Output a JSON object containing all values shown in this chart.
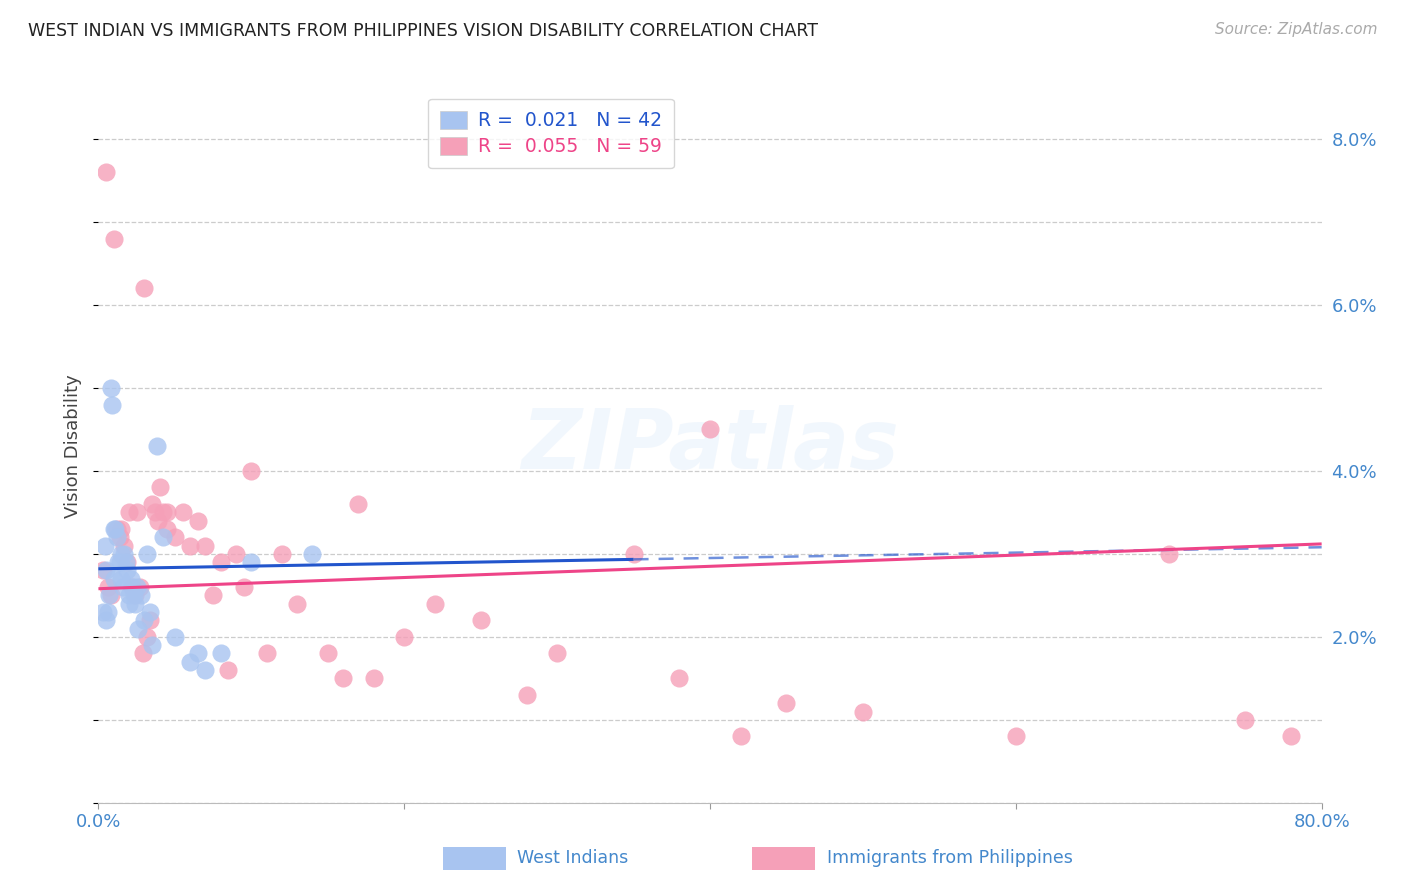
{
  "title": "WEST INDIAN VS IMMIGRANTS FROM PHILIPPINES VISION DISABILITY CORRELATION CHART",
  "source": "Source: ZipAtlas.com",
  "ylabel": "Vision Disability",
  "xlim": [
    0.0,
    80.0
  ],
  "ylim": [
    0.0,
    8.6
  ],
  "yticks": [
    2.0,
    4.0,
    6.0,
    8.0
  ],
  "ytick_labels": [
    "2.0%",
    "4.0%",
    "6.0%",
    "8.0%"
  ],
  "xtick_labels": [
    "0.0%",
    "",
    "",
    "",
    "80.0%"
  ],
  "legend_blue_r": "R = ",
  "legend_blue_r_val": "0.021",
  "legend_blue_n": "N = ",
  "legend_blue_n_val": "42",
  "legend_pink_r": "R = ",
  "legend_pink_r_val": "0.055",
  "legend_pink_n": "N = ",
  "legend_pink_n_val": "59",
  "watermark": "ZIPatlas",
  "blue_scatter_color": "#a8c4f0",
  "pink_scatter_color": "#f5a0b8",
  "blue_line_color": "#2255cc",
  "pink_line_color": "#ee4488",
  "tick_label_color": "#4488cc",
  "grid_color": "#cccccc",
  "bg_color": "#ffffff",
  "west_indians_x": [
    0.3,
    0.4,
    0.5,
    0.5,
    0.6,
    0.7,
    0.8,
    0.9,
    1.0,
    1.0,
    1.1,
    1.2,
    1.3,
    1.4,
    1.5,
    1.5,
    1.6,
    1.7,
    1.8,
    1.9,
    2.0,
    2.0,
    2.1,
    2.2,
    2.3,
    2.4,
    2.5,
    2.6,
    2.8,
    3.0,
    3.2,
    3.4,
    3.5,
    3.8,
    4.2,
    5.0,
    6.0,
    6.5,
    7.0,
    8.0,
    10.0,
    14.0
  ],
  "west_indians_y": [
    2.3,
    3.1,
    2.8,
    2.2,
    2.3,
    2.5,
    5.0,
    4.8,
    3.3,
    2.7,
    3.3,
    3.2,
    2.9,
    2.9,
    3.0,
    2.7,
    2.6,
    3.0,
    2.9,
    2.8,
    2.5,
    2.4,
    2.7,
    2.6,
    2.5,
    2.4,
    2.6,
    2.1,
    2.5,
    2.2,
    3.0,
    2.3,
    1.9,
    4.3,
    3.2,
    2.0,
    1.7,
    1.8,
    1.6,
    1.8,
    2.9,
    3.0
  ],
  "philippines_x": [
    0.3,
    0.5,
    0.6,
    0.8,
    1.0,
    1.2,
    1.4,
    1.5,
    1.7,
    1.9,
    2.0,
    2.2,
    2.4,
    2.5,
    2.7,
    2.9,
    3.0,
    3.2,
    3.4,
    3.5,
    3.7,
    3.9,
    4.0,
    4.2,
    4.5,
    4.5,
    5.0,
    5.5,
    6.0,
    6.5,
    7.0,
    7.5,
    8.0,
    8.5,
    9.0,
    9.5,
    10.0,
    11.0,
    12.0,
    13.0,
    15.0,
    16.0,
    17.0,
    18.0,
    20.0,
    22.0,
    25.0,
    28.0,
    30.0,
    35.0,
    38.0,
    40.0,
    42.0,
    45.0,
    50.0,
    60.0,
    70.0,
    75.0,
    78.0
  ],
  "philippines_y": [
    2.8,
    7.6,
    2.6,
    2.5,
    6.8,
    3.3,
    3.2,
    3.3,
    3.1,
    2.9,
    3.5,
    2.6,
    2.5,
    3.5,
    2.6,
    1.8,
    6.2,
    2.0,
    2.2,
    3.6,
    3.5,
    3.4,
    3.8,
    3.5,
    3.3,
    3.5,
    3.2,
    3.5,
    3.1,
    3.4,
    3.1,
    2.5,
    2.9,
    1.6,
    3.0,
    2.6,
    4.0,
    1.8,
    3.0,
    2.4,
    1.8,
    1.5,
    3.6,
    1.5,
    2.0,
    2.4,
    2.2,
    1.3,
    1.8,
    3.0,
    1.5,
    4.5,
    0.8,
    1.2,
    1.1,
    0.8,
    3.0,
    1.0,
    0.8
  ]
}
